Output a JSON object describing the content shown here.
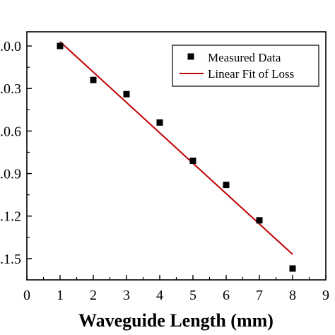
{
  "chart_data": {
    "type": "scatter",
    "xlabel": "Waveguide Length (mm)",
    "ylabel": "",
    "xlim": [
      0,
      9
    ],
    "ylim": [
      -1.65,
      0.1
    ],
    "x_ticks": [
      0,
      1,
      2,
      3,
      4,
      5,
      6,
      7,
      8,
      9
    ],
    "y_ticks": [
      0.0,
      -0.3,
      -0.6,
      -0.9,
      -1.2,
      -1.5
    ],
    "y_tick_labels": [
      ".0.0",
      ".0.3",
      ".0.6",
      ".0.9",
      ".1.2",
      ".1.5"
    ],
    "grid": false,
    "legend_position": "top-right",
    "series": [
      {
        "name": "Measured Data",
        "kind": "scatter",
        "color": "#000000",
        "x": [
          1,
          2,
          3,
          4,
          5,
          6,
          7,
          8
        ],
        "y": [
          0.0,
          -0.24,
          -0.34,
          -0.54,
          -0.81,
          -0.98,
          -1.23,
          -1.57
        ]
      },
      {
        "name": "Linear Fit of Loss",
        "kind": "line",
        "color": "#c00000",
        "x": [
          1,
          8
        ],
        "y": [
          0.03,
          -1.47
        ]
      }
    ]
  }
}
